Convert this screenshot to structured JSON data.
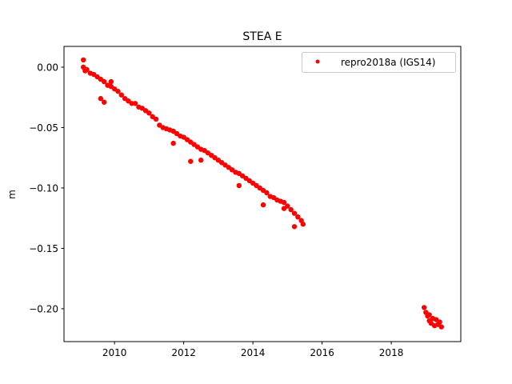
{
  "chart_data": {
    "type": "scatter",
    "title": "STEA E",
    "xlabel": "",
    "ylabel": "m",
    "xlim": [
      2008.54,
      2020.01
    ],
    "ylim": [
      -0.2272,
      0.0172
    ],
    "xticks": [
      2010,
      2012,
      2014,
      2016,
      2018
    ],
    "xtick_labels": [
      "2010",
      "2012",
      "2014",
      "2016",
      "2018"
    ],
    "yticks": [
      0.0,
      -0.05,
      -0.1,
      -0.15,
      -0.2
    ],
    "ytick_labels": [
      "0.00",
      "−0.05",
      "−0.10",
      "−0.15",
      "−0.20"
    ],
    "grid": false,
    "legend_position": "top-right",
    "series": [
      {
        "name": "repro2018a (IGS14)",
        "color": "#ff0000",
        "marker": "point",
        "points": [
          [
            2009.1,
            0.0
          ],
          [
            2009.1,
            0.006
          ],
          [
            2009.15,
            -0.003
          ],
          [
            2009.2,
            -0.002
          ],
          [
            2009.3,
            -0.005
          ],
          [
            2009.4,
            -0.006
          ],
          [
            2009.5,
            -0.008
          ],
          [
            2009.6,
            -0.01
          ],
          [
            2009.7,
            -0.012
          ],
          [
            2009.8,
            -0.015
          ],
          [
            2009.9,
            -0.016
          ],
          [
            2010.0,
            -0.018
          ],
          [
            2010.1,
            -0.02
          ],
          [
            2010.2,
            -0.023
          ],
          [
            2010.3,
            -0.026
          ],
          [
            2010.4,
            -0.028
          ],
          [
            2010.5,
            -0.03
          ],
          [
            2010.6,
            -0.03
          ],
          [
            2010.7,
            -0.033
          ],
          [
            2010.8,
            -0.034
          ],
          [
            2010.9,
            -0.036
          ],
          [
            2011.0,
            -0.038
          ],
          [
            2011.1,
            -0.041
          ],
          [
            2011.2,
            -0.043
          ],
          [
            2011.3,
            -0.048
          ],
          [
            2011.4,
            -0.05
          ],
          [
            2011.5,
            -0.051
          ],
          [
            2011.6,
            -0.052
          ],
          [
            2011.7,
            -0.053
          ],
          [
            2011.8,
            -0.055
          ],
          [
            2011.9,
            -0.057
          ],
          [
            2012.0,
            -0.058
          ],
          [
            2012.1,
            -0.06
          ],
          [
            2012.2,
            -0.062
          ],
          [
            2012.3,
            -0.064
          ],
          [
            2012.4,
            -0.066
          ],
          [
            2012.5,
            -0.068
          ],
          [
            2012.6,
            -0.069
          ],
          [
            2012.7,
            -0.071
          ],
          [
            2012.8,
            -0.073
          ],
          [
            2012.9,
            -0.075
          ],
          [
            2013.0,
            -0.077
          ],
          [
            2013.1,
            -0.079
          ],
          [
            2013.2,
            -0.081
          ],
          [
            2013.3,
            -0.083
          ],
          [
            2013.4,
            -0.085
          ],
          [
            2013.5,
            -0.087
          ],
          [
            2013.6,
            -0.088
          ],
          [
            2013.7,
            -0.09
          ],
          [
            2013.8,
            -0.092
          ],
          [
            2013.9,
            -0.094
          ],
          [
            2014.0,
            -0.096
          ],
          [
            2014.1,
            -0.098
          ],
          [
            2014.2,
            -0.1
          ],
          [
            2014.3,
            -0.102
          ],
          [
            2014.4,
            -0.104
          ],
          [
            2014.5,
            -0.107
          ],
          [
            2014.6,
            -0.108
          ],
          [
            2014.7,
            -0.11
          ],
          [
            2014.8,
            -0.111
          ],
          [
            2014.9,
            -0.112
          ],
          [
            2015.0,
            -0.115
          ],
          [
            2015.1,
            -0.118
          ],
          [
            2015.2,
            -0.121
          ],
          [
            2015.3,
            -0.124
          ],
          [
            2015.4,
            -0.127
          ],
          [
            2015.45,
            -0.13
          ],
          [
            2009.6,
            -0.026
          ],
          [
            2009.7,
            -0.029
          ],
          [
            2009.9,
            -0.012
          ],
          [
            2011.7,
            -0.063
          ],
          [
            2012.2,
            -0.078
          ],
          [
            2012.5,
            -0.077
          ],
          [
            2013.6,
            -0.098
          ],
          [
            2014.3,
            -0.114
          ],
          [
            2014.9,
            -0.117
          ],
          [
            2015.2,
            -0.132
          ],
          [
            2018.95,
            -0.199
          ],
          [
            2019.0,
            -0.203
          ],
          [
            2019.05,
            -0.206
          ],
          [
            2019.1,
            -0.21
          ],
          [
            2019.1,
            -0.205
          ],
          [
            2019.15,
            -0.212
          ],
          [
            2019.2,
            -0.208
          ],
          [
            2019.25,
            -0.214
          ],
          [
            2019.3,
            -0.209
          ],
          [
            2019.35,
            -0.213
          ],
          [
            2019.4,
            -0.211
          ],
          [
            2019.45,
            -0.215
          ]
        ]
      }
    ]
  }
}
